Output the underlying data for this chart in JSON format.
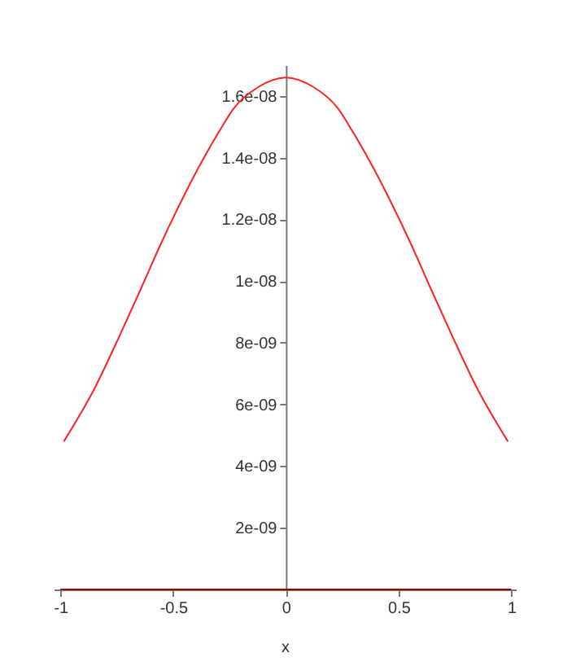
{
  "chart_data": {
    "type": "line",
    "xlabel": "x",
    "xlim": [
      -1.03,
      1.02
    ],
    "ylim": [
      0,
      1.7e-08
    ],
    "xticks": [
      -1,
      -0.5,
      0,
      0.5,
      1
    ],
    "yticks": [
      {
        "value": 2e-09,
        "label": "2e-09"
      },
      {
        "value": 4e-09,
        "label": "4e-09"
      },
      {
        "value": 6e-09,
        "label": "6e-09"
      },
      {
        "value": 8e-09,
        "label": "8e-09"
      },
      {
        "value": 1e-08,
        "label": "1e-08"
      },
      {
        "value": 1.2e-08,
        "label": "1.2e-08"
      },
      {
        "value": 1.4e-08,
        "label": "1.4e-08"
      },
      {
        "value": 1.6e-08,
        "label": "1.6e-08"
      }
    ],
    "grid": false,
    "series": [
      {
        "color": "#ff2020",
        "x": [
          -0.985,
          -0.85,
          -0.733,
          -0.64,
          -0.555,
          -0.47,
          -0.393,
          -0.3,
          -0.231,
          -0.12,
          0,
          0.12,
          0.231,
          0.3,
          0.393,
          0.47,
          0.555,
          0.64,
          0.733,
          0.85,
          0.985
        ],
        "values": [
          4.8e-09,
          6.5e-09,
          8.3e-09,
          9.8e-09,
          1.12e-08,
          1.25e-08,
          1.36e-08,
          1.48e-08,
          1.56e-08,
          1.63e-08,
          1.66e-08,
          1.63e-08,
          1.56e-08,
          1.48e-08,
          1.36e-08,
          1.25e-08,
          1.12e-08,
          9.8e-09,
          8.3e-09,
          6.5e-09,
          4.8e-09
        ]
      },
      {
        "color": "#a00000",
        "x": [
          -1,
          1
        ],
        "values": [
          0,
          0
        ]
      }
    ]
  }
}
